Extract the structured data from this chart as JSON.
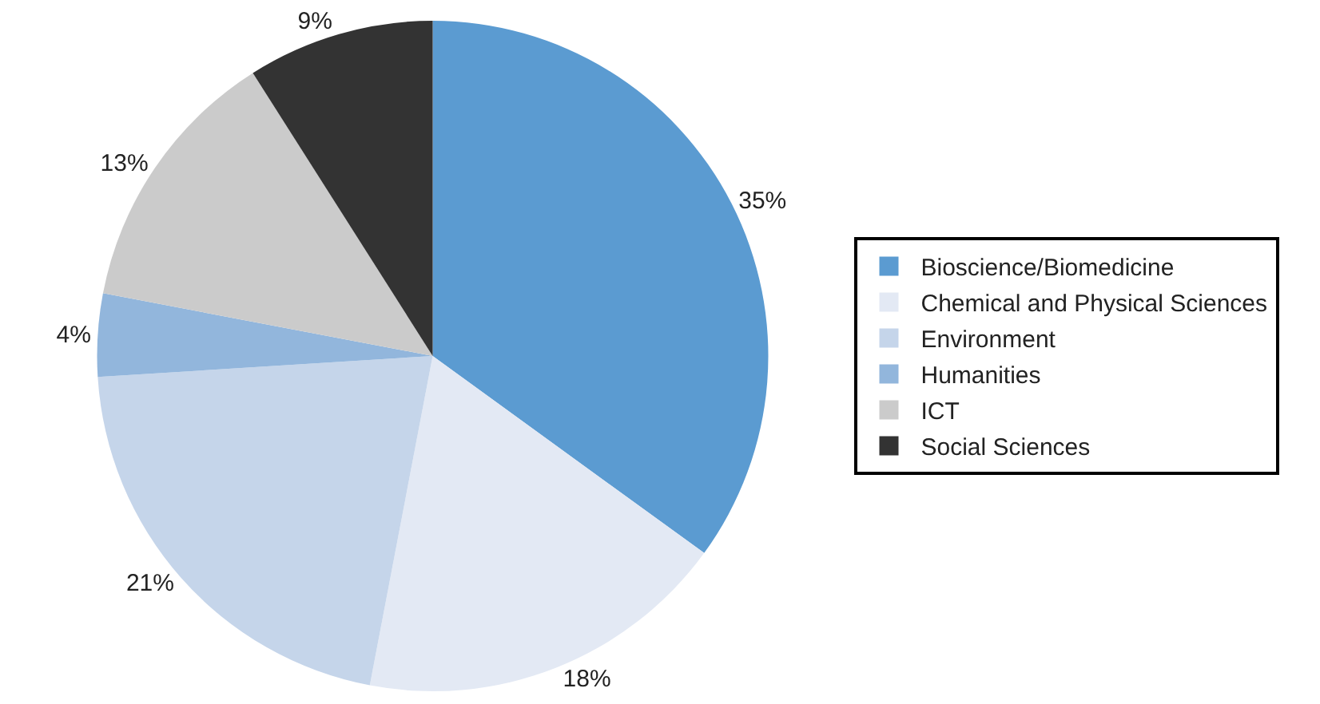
{
  "chart_data": {
    "type": "pie",
    "categories": [
      "Bioscience/Biomedicine",
      "Chemical and Physical Sciences",
      "Environment",
      "Humanities",
      "ICT",
      "Social Sciences"
    ],
    "values": [
      35,
      18,
      21,
      4,
      13,
      9
    ],
    "colors": [
      "#5b9bd1",
      "#e3e9f4",
      "#c5d5ea",
      "#92b6dc",
      "#cbcbcb",
      "#333333"
    ],
    "value_labels": [
      "35%",
      "18%",
      "21%",
      "4%",
      "13%",
      "9%"
    ],
    "legend": "right"
  }
}
